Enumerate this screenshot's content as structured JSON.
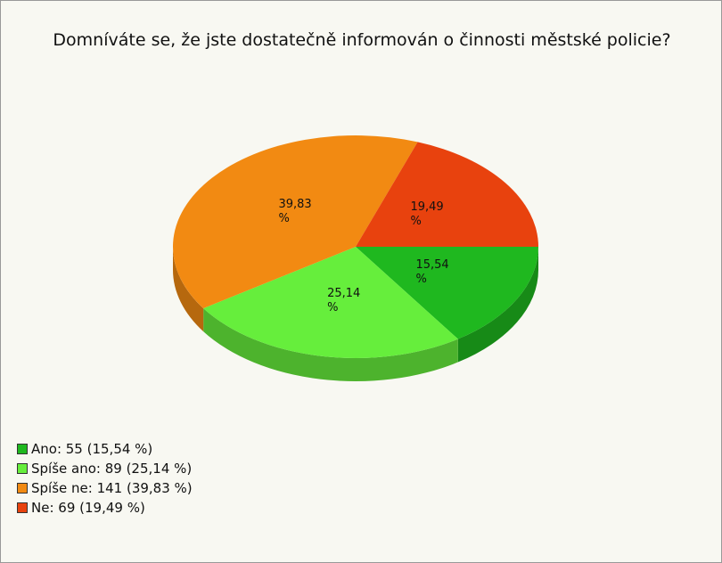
{
  "chart_data": {
    "type": "pie",
    "title": "Domníváte se, že jste dostatečně informován o činnosti městské policie?",
    "categories": [
      "Ano: 55 (15,54 %)",
      "Spíše ano: 89 (25,14 %)",
      "Spíše ne: 141 (39,83 %)",
      "Ne: 69 (19,49 %)"
    ],
    "values": [
      15.54,
      25.14,
      39.83,
      19.49
    ],
    "value_labels": [
      "15,54 %",
      "25,14 %",
      "39,83 %",
      "19,49 %"
    ],
    "colors": [
      "#1fb81f",
      "#66ee3c",
      "#f28a12",
      "#e8420e"
    ],
    "legend": "bottom-left"
  }
}
